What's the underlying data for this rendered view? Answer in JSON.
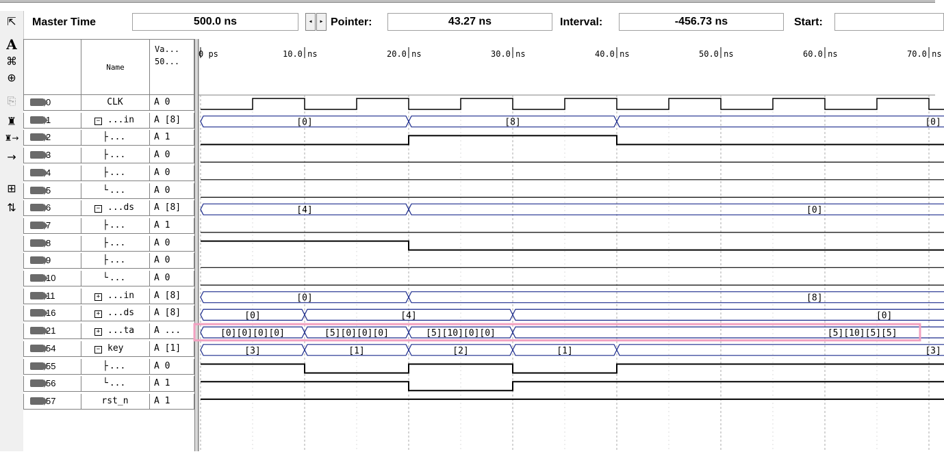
{
  "toolbar": {
    "master_time_label": "Master Time",
    "master_time_value": "500.0 ns",
    "pointer_label": "Pointer:",
    "pointer_value": "43.27 ns",
    "interval_label": "Interval:",
    "interval_value": "-456.73 ns",
    "start_label": "Start:",
    "start_value": ""
  },
  "left_tools": [
    "selection-arrow-icon",
    "text-tool-icon",
    "waveform-edit-icon",
    "zoom-icon",
    "copy-icon",
    "find-icon",
    "find-next-icon",
    "replace-icon",
    "grid-icon",
    "sort-icon"
  ],
  "header": {
    "name": "Name",
    "value_line1": "Va...",
    "value_line2": "50..."
  },
  "timeline": {
    "ticks": [
      "0 ps",
      "10.0 ns",
      "20.0 ns",
      "30.0 ns",
      "40.0 ns",
      "50.0 ns",
      "60.0 ns",
      "70.0 ns"
    ],
    "ns_per_tick": 10
  },
  "signals": [
    {
      "id": "0",
      "name": "CLK",
      "value": "A 0",
      "kind": "clk",
      "tree": ""
    },
    {
      "id": "1",
      "name": "...in",
      "value": "A [8]",
      "kind": "bus",
      "tree": "minus",
      "segs": [
        [
          0,
          20,
          "[0]"
        ],
        [
          20,
          40,
          "[8]"
        ],
        [
          40,
          72,
          "[0]"
        ]
      ],
      "label_pos": [
        0.5,
        0.5,
        0.95
      ]
    },
    {
      "id": "2",
      "name": "...",
      "value": "A 1",
      "kind": "bit",
      "tree": "branch",
      "levels": [
        [
          0,
          20,
          0
        ],
        [
          20,
          40,
          1
        ],
        [
          40,
          72,
          0
        ]
      ]
    },
    {
      "id": "3",
      "name": "...",
      "value": "A 0",
      "kind": "bit",
      "tree": "branch",
      "levels": [
        [
          0,
          72,
          0
        ]
      ]
    },
    {
      "id": "4",
      "name": "...",
      "value": "A 0",
      "kind": "bit",
      "tree": "branch",
      "levels": [
        [
          0,
          72,
          0
        ]
      ]
    },
    {
      "id": "5",
      "name": "...",
      "value": "A 0",
      "kind": "bit",
      "tree": "end",
      "levels": [
        [
          0,
          72,
          0
        ]
      ]
    },
    {
      "id": "6",
      "name": "...ds",
      "value": "A [8]",
      "kind": "bus",
      "tree": "minus",
      "segs": [
        [
          0,
          20,
          "[4]"
        ],
        [
          20,
          72,
          "[0]"
        ]
      ],
      "label_pos": [
        0.5,
        0.75
      ]
    },
    {
      "id": "7",
      "name": "...",
      "value": "A 1",
      "kind": "bit",
      "tree": "branch",
      "levels": [
        [
          0,
          72,
          0
        ]
      ]
    },
    {
      "id": "8",
      "name": "...",
      "value": "A 0",
      "kind": "bit",
      "tree": "branch",
      "levels": [
        [
          0,
          20,
          1
        ],
        [
          20,
          72,
          0
        ]
      ]
    },
    {
      "id": "9",
      "name": "...",
      "value": "A 0",
      "kind": "bit",
      "tree": "branch",
      "levels": [
        [
          0,
          72,
          0
        ]
      ]
    },
    {
      "id": "10",
      "name": "...",
      "value": "A 0",
      "kind": "bit",
      "tree": "end",
      "levels": [
        [
          0,
          72,
          0
        ]
      ]
    },
    {
      "id": "11",
      "name": "...in",
      "value": "A [8]",
      "kind": "bus",
      "tree": "plus",
      "segs": [
        [
          0,
          20,
          "[0]"
        ],
        [
          20,
          72,
          "[8]"
        ]
      ],
      "label_pos": [
        0.5,
        0.75
      ]
    },
    {
      "id": "16",
      "name": "...ds",
      "value": "A [8]",
      "kind": "bus",
      "tree": "plus",
      "segs": [
        [
          0,
          10,
          "[0]"
        ],
        [
          10,
          30,
          "[4]"
        ],
        [
          30,
          72,
          "[0]"
        ]
      ],
      "label_pos": [
        0.5,
        0.5,
        0.85
      ]
    },
    {
      "id": "21",
      "name": "...ta",
      "value": "A ...",
      "kind": "bus",
      "tree": "plus",
      "highlight": true,
      "segs": [
        [
          0,
          10,
          "[0][0][0][0]"
        ],
        [
          10,
          20,
          "[5][0][0][0]"
        ],
        [
          20,
          30,
          "[5][10][0][0]"
        ],
        [
          30,
          72,
          "[5][10][5][5]"
        ]
      ],
      "label_pos": [
        0.5,
        0.5,
        0.5,
        0.8
      ]
    },
    {
      "id": "54",
      "name": "key",
      "value": "A [1]",
      "kind": "bus",
      "tree": "minus",
      "segs": [
        [
          0,
          10,
          "[3]"
        ],
        [
          10,
          20,
          "[1]"
        ],
        [
          20,
          30,
          "[2]"
        ],
        [
          30,
          40,
          "[1]"
        ],
        [
          40,
          72,
          "[3]"
        ]
      ],
      "label_pos": [
        0.5,
        0.5,
        0.5,
        0.5,
        0.95
      ]
    },
    {
      "id": "55",
      "name": "...",
      "value": "A 0",
      "kind": "bit",
      "tree": "branch",
      "levels": [
        [
          0,
          10,
          1
        ],
        [
          10,
          20,
          0
        ],
        [
          20,
          30,
          1
        ],
        [
          30,
          40,
          0
        ],
        [
          40,
          72,
          1
        ]
      ]
    },
    {
      "id": "56",
      "name": "...",
      "value": "A 1",
      "kind": "bit",
      "tree": "end",
      "levels": [
        [
          0,
          20,
          1
        ],
        [
          20,
          30,
          0
        ],
        [
          30,
          72,
          1
        ]
      ]
    },
    {
      "id": "57",
      "name": "rst_n",
      "value": "A 1",
      "kind": "bit",
      "tree": "",
      "levels": [
        [
          0,
          72,
          1
        ]
      ]
    }
  ],
  "colors": {
    "bus": "#1a2a8c",
    "grid": "#a8a8a8",
    "highlight": "#f2a0c0",
    "wire": "#000000"
  }
}
